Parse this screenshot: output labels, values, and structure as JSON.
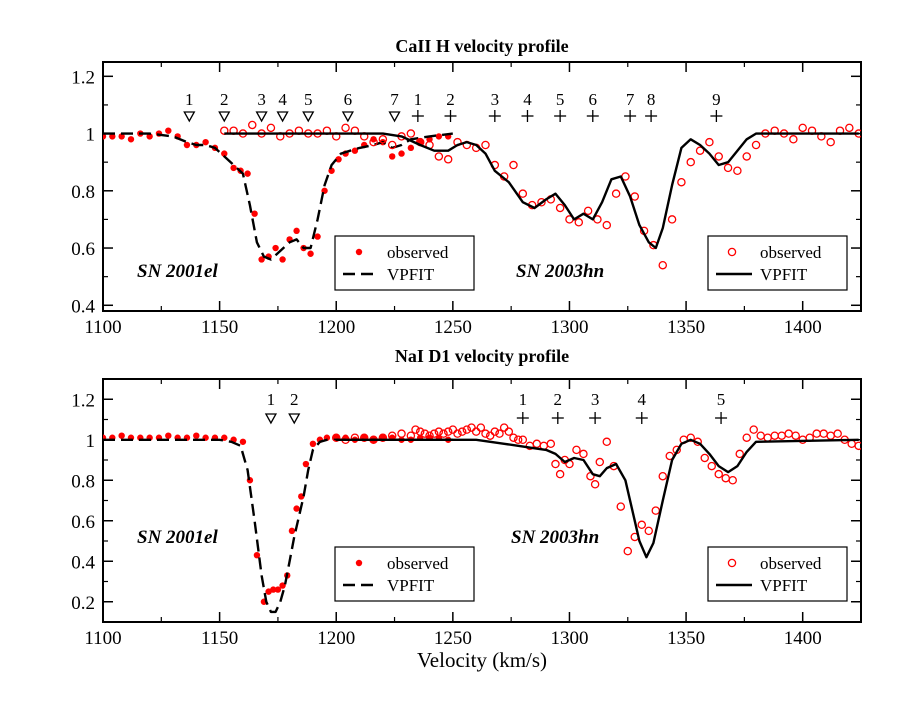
{
  "figure": {
    "xlabel": "Velocity (km/s)"
  },
  "colors": {
    "observed": "#ff0000",
    "model": "#000000",
    "axes": "#000000"
  },
  "chart_data": [
    {
      "type": "scatter",
      "title": "CaII H velocity profile",
      "xlabel": "Velocity (km/s)",
      "ylabel": "",
      "xlim": [
        1100,
        1425
      ],
      "ylim": [
        0.38,
        1.25
      ],
      "xticks": [
        1100,
        1150,
        1200,
        1250,
        1300,
        1350,
        1400
      ],
      "yticks": [
        0.4,
        0.6,
        0.8,
        1,
        1.2
      ],
      "xtick_labels": [
        "1100",
        "1150",
        "1200",
        "1250",
        "1300",
        "1350",
        "1400"
      ],
      "ytick_labels": [
        "0.4",
        "0.6",
        "0.8",
        "1",
        "1.2"
      ],
      "sn_labels": [
        {
          "text": "SN 2001el",
          "x": 1108,
          "y": 0.55
        },
        {
          "text": "SN 2003hn",
          "x": 1257,
          "y": 0.55
        }
      ],
      "legend_filled": {
        "observed_label": "observed",
        "model_label": "VPFIT"
      },
      "legend_open": {
        "observed_label": "observed",
        "model_label": "VPFIT"
      },
      "components_01el": {
        "marker": "triangle",
        "labels": [
          "1",
          "2",
          "3",
          "4",
          "5",
          "6",
          "7"
        ],
        "x": [
          1137,
          1152,
          1168,
          1177,
          1188,
          1205,
          1225
        ]
      },
      "components_03hn": {
        "marker": "plus",
        "labels": [
          "1",
          "2",
          "3",
          "4",
          "5",
          "6",
          "7",
          "8",
          "9"
        ],
        "x": [
          1235,
          1249,
          1268,
          1282,
          1296,
          1310,
          1326,
          1335,
          1363
        ]
      },
      "series": [
        {
          "name": "SN 2001el observed",
          "style": "filled",
          "x": [
            1100,
            1104,
            1108,
            1112,
            1116,
            1120,
            1124,
            1128,
            1132,
            1136,
            1140,
            1144,
            1148,
            1152,
            1156,
            1159,
            1162,
            1165,
            1168,
            1171,
            1174,
            1177,
            1180,
            1183,
            1186,
            1189,
            1192,
            1195,
            1198,
            1201,
            1204,
            1208,
            1212,
            1216,
            1220,
            1224,
            1228,
            1232,
            1236,
            1240,
            1244,
            1248
          ],
          "y": [
            0.99,
            0.99,
            0.99,
            0.98,
            1.0,
            0.99,
            1.0,
            1.01,
            0.99,
            0.96,
            0.96,
            0.97,
            0.95,
            0.93,
            0.88,
            0.87,
            0.86,
            0.72,
            0.56,
            0.57,
            0.6,
            0.56,
            0.63,
            0.66,
            0.6,
            0.58,
            0.64,
            0.8,
            0.87,
            0.91,
            0.93,
            0.94,
            0.96,
            0.98,
            0.97,
            0.92,
            0.93,
            0.95,
            0.97,
            0.98,
            0.99,
            0.99
          ]
        },
        {
          "name": "SN 2001el VPFIT",
          "style": "dashed",
          "x": [
            1100,
            1120,
            1130,
            1136,
            1140,
            1144,
            1148,
            1152,
            1156,
            1160,
            1163,
            1166,
            1169,
            1172,
            1176,
            1180,
            1183,
            1186,
            1189,
            1192,
            1195,
            1198,
            1202,
            1206,
            1210,
            1216,
            1220,
            1224,
            1228,
            1232,
            1240,
            1250
          ],
          "y": [
            1.0,
            1.0,
            0.99,
            0.97,
            0.96,
            0.96,
            0.95,
            0.92,
            0.89,
            0.86,
            0.75,
            0.62,
            0.57,
            0.56,
            0.59,
            0.62,
            0.63,
            0.6,
            0.6,
            0.7,
            0.82,
            0.89,
            0.93,
            0.94,
            0.95,
            0.96,
            0.97,
            0.95,
            0.96,
            0.98,
            0.99,
            1.0
          ]
        },
        {
          "name": "SN 2003hn observed",
          "style": "open",
          "x": [
            1152,
            1156,
            1160,
            1164,
            1168,
            1172,
            1176,
            1180,
            1184,
            1188,
            1192,
            1196,
            1200,
            1204,
            1208,
            1212,
            1216,
            1220,
            1224,
            1228,
            1232,
            1236,
            1240,
            1244,
            1248,
            1252,
            1256,
            1260,
            1264,
            1268,
            1272,
            1276,
            1280,
            1284,
            1288,
            1292,
            1296,
            1300,
            1304,
            1308,
            1312,
            1316,
            1320,
            1324,
            1328,
            1332,
            1336,
            1340,
            1344,
            1348,
            1352,
            1356,
            1360,
            1364,
            1368,
            1372,
            1376,
            1380,
            1384,
            1388,
            1392,
            1396,
            1400,
            1404,
            1408,
            1412,
            1416,
            1420,
            1424
          ],
          "y": [
            1.01,
            1.01,
            1.0,
            1.03,
            1.0,
            1.02,
            0.99,
            1.0,
            1.01,
            1.0,
            1.0,
            1.01,
            0.99,
            1.02,
            1.01,
            0.99,
            0.97,
            0.98,
            0.96,
            0.99,
            1.0,
            0.97,
            0.96,
            0.92,
            0.91,
            0.97,
            0.96,
            0.95,
            0.96,
            0.89,
            0.85,
            0.89,
            0.79,
            0.75,
            0.76,
            0.77,
            0.74,
            0.7,
            0.69,
            0.73,
            0.7,
            0.68,
            0.79,
            0.85,
            0.78,
            0.66,
            0.61,
            0.54,
            0.7,
            0.83,
            0.9,
            0.94,
            0.97,
            0.92,
            0.88,
            0.87,
            0.92,
            0.96,
            1.0,
            1.01,
            1.0,
            0.98,
            1.02,
            1.01,
            0.99,
            0.97,
            1.01,
            1.02,
            1.0
          ]
        },
        {
          "name": "SN 2003hn VPFIT",
          "style": "solid",
          "x": [
            1152,
            1220,
            1228,
            1236,
            1242,
            1248,
            1252,
            1256,
            1260,
            1264,
            1268,
            1274,
            1280,
            1285,
            1290,
            1294,
            1298,
            1302,
            1306,
            1310,
            1314,
            1318,
            1322,
            1326,
            1330,
            1334,
            1337,
            1340,
            1344,
            1348,
            1352,
            1356,
            1360,
            1364,
            1368,
            1372,
            1376,
            1380,
            1424
          ],
          "y": [
            1.0,
            1.0,
            0.99,
            0.96,
            0.94,
            0.94,
            0.96,
            0.97,
            0.96,
            0.93,
            0.87,
            0.83,
            0.76,
            0.74,
            0.77,
            0.79,
            0.75,
            0.7,
            0.72,
            0.7,
            0.76,
            0.84,
            0.85,
            0.78,
            0.68,
            0.62,
            0.6,
            0.67,
            0.82,
            0.95,
            0.98,
            0.96,
            0.93,
            0.89,
            0.9,
            0.94,
            0.98,
            1.0,
            1.0
          ]
        }
      ]
    },
    {
      "type": "scatter",
      "title": "NaI D1 velocity profile",
      "xlabel": "Velocity (km/s)",
      "ylabel": "",
      "xlim": [
        1100,
        1425
      ],
      "ylim": [
        0.1,
        1.3
      ],
      "xticks": [
        1100,
        1150,
        1200,
        1250,
        1300,
        1350,
        1400
      ],
      "yticks": [
        0.2,
        0.4,
        0.6,
        0.8,
        1,
        1.2
      ],
      "xtick_labels": [
        "1100",
        "1150",
        "1200",
        "1250",
        "1300",
        "1350",
        "1400"
      ],
      "ytick_labels": [
        "0.2",
        "0.4",
        "0.6",
        "0.8",
        "1",
        "1.2"
      ],
      "sn_labels": [
        {
          "text": "SN 2001el",
          "x": 1108,
          "y": 0.5
        },
        {
          "text": "SN 2003hn",
          "x": 1252,
          "y": 0.5
        }
      ],
      "legend_filled": {
        "observed_label": "observed",
        "model_label": "VPFIT"
      },
      "legend_open": {
        "observed_label": "observed",
        "model_label": "VPFIT"
      },
      "components_01el": {
        "marker": "triangle",
        "labels": [
          "1",
          "2"
        ],
        "x": [
          1172,
          1182
        ]
      },
      "components_03hn": {
        "marker": "plus",
        "labels": [
          "1",
          "2",
          "3",
          "4",
          "5"
        ],
        "x": [
          1280,
          1295,
          1311,
          1331,
          1365
        ]
      },
      "series": [
        {
          "name": "SN 2001el observed",
          "style": "filled",
          "x": [
            1100,
            1104,
            1108,
            1112,
            1116,
            1120,
            1124,
            1128,
            1132,
            1136,
            1140,
            1144,
            1148,
            1152,
            1156,
            1160,
            1163,
            1166,
            1169,
            1171,
            1173,
            1175,
            1177,
            1179,
            1181,
            1183,
            1185,
            1187,
            1190,
            1193,
            1196,
            1200,
            1204,
            1208,
            1212,
            1216,
            1220,
            1224,
            1228,
            1232,
            1236,
            1240,
            1244,
            1248
          ],
          "y": [
            1.01,
            1.01,
            1.02,
            1.01,
            1.01,
            1.01,
            1.01,
            1.02,
            1.01,
            1.01,
            1.02,
            1.01,
            1.01,
            1.01,
            1.0,
            0.99,
            0.8,
            0.43,
            0.2,
            0.25,
            0.26,
            0.26,
            0.28,
            0.33,
            0.55,
            0.66,
            0.72,
            0.88,
            0.98,
            1.0,
            1.01,
            1.01,
            1.01,
            1.0,
            1.01,
            1.0,
            1.01,
            1.01,
            1.0,
            1.0,
            1.01,
            1.01,
            1.01,
            1.0
          ]
        },
        {
          "name": "SN 2001el VPFIT",
          "style": "dashed",
          "x": [
            1100,
            1150,
            1155,
            1159,
            1162,
            1165,
            1168,
            1170,
            1172,
            1174,
            1176,
            1178,
            1180,
            1182,
            1184,
            1186,
            1188,
            1190,
            1193,
            1196,
            1200,
            1250
          ],
          "y": [
            1.0,
            1.0,
            0.99,
            0.97,
            0.85,
            0.6,
            0.33,
            0.2,
            0.15,
            0.15,
            0.2,
            0.28,
            0.4,
            0.52,
            0.62,
            0.72,
            0.85,
            0.95,
            0.99,
            1.0,
            1.0,
            1.0
          ]
        },
        {
          "name": "SN 2003hn observed",
          "style": "open",
          "x": [
            1200,
            1204,
            1208,
            1212,
            1216,
            1220,
            1224,
            1228,
            1232,
            1234,
            1236,
            1238,
            1240,
            1242,
            1244,
            1246,
            1248,
            1250,
            1252,
            1254,
            1256,
            1258,
            1260,
            1262,
            1264,
            1266,
            1268,
            1270,
            1272,
            1274,
            1276,
            1278,
            1280,
            1283,
            1286,
            1289,
            1292,
            1294,
            1296,
            1298,
            1300,
            1303,
            1306,
            1309,
            1311,
            1313,
            1316,
            1319,
            1322,
            1325,
            1328,
            1331,
            1334,
            1337,
            1340,
            1343,
            1346,
            1349,
            1352,
            1355,
            1358,
            1361,
            1364,
            1367,
            1370,
            1373,
            1376,
            1379,
            1382,
            1385,
            1388,
            1391,
            1394,
            1397,
            1400,
            1403,
            1406,
            1409,
            1412,
            1415,
            1418,
            1421,
            1424
          ],
          "y": [
            1.01,
            1.0,
            1.01,
            1.01,
            1.0,
            1.01,
            1.02,
            1.03,
            1.02,
            1.05,
            1.04,
            1.03,
            1.02,
            1.03,
            1.04,
            1.03,
            1.04,
            1.05,
            1.03,
            1.04,
            1.05,
            1.06,
            1.04,
            1.06,
            1.03,
            1.02,
            1.04,
            1.03,
            1.06,
            1.04,
            1.01,
            1.0,
            1.0,
            0.97,
            0.98,
            0.97,
            0.98,
            0.88,
            0.83,
            0.9,
            0.88,
            0.95,
            0.93,
            0.82,
            0.78,
            0.89,
            0.99,
            0.87,
            0.67,
            0.45,
            0.52,
            0.58,
            0.55,
            0.65,
            0.82,
            0.92,
            0.95,
            1.0,
            1.01,
            0.99,
            0.91,
            0.87,
            0.83,
            0.81,
            0.8,
            0.93,
            1.01,
            1.05,
            1.02,
            1.01,
            1.02,
            1.02,
            1.03,
            1.02,
            1.0,
            1.01,
            1.03,
            1.03,
            1.02,
            1.03,
            1.0,
            0.98,
            0.97
          ]
        },
        {
          "name": "SN 2003hn VPFIT",
          "style": "solid",
          "x": [
            1200,
            1260,
            1266,
            1272,
            1278,
            1284,
            1290,
            1294,
            1298,
            1302,
            1306,
            1310,
            1313,
            1316,
            1320,
            1324,
            1327,
            1330,
            1333,
            1336,
            1340,
            1344,
            1348,
            1352,
            1356,
            1360,
            1364,
            1368,
            1372,
            1376,
            1380,
            1424
          ],
          "y": [
            1.0,
            1.0,
            0.99,
            0.98,
            0.97,
            0.96,
            0.95,
            0.93,
            0.89,
            0.91,
            0.9,
            0.83,
            0.82,
            0.86,
            0.88,
            0.8,
            0.65,
            0.5,
            0.42,
            0.49,
            0.7,
            0.9,
            0.98,
            1.0,
            0.98,
            0.93,
            0.87,
            0.84,
            0.87,
            0.94,
            0.99,
            1.0
          ]
        }
      ]
    }
  ]
}
